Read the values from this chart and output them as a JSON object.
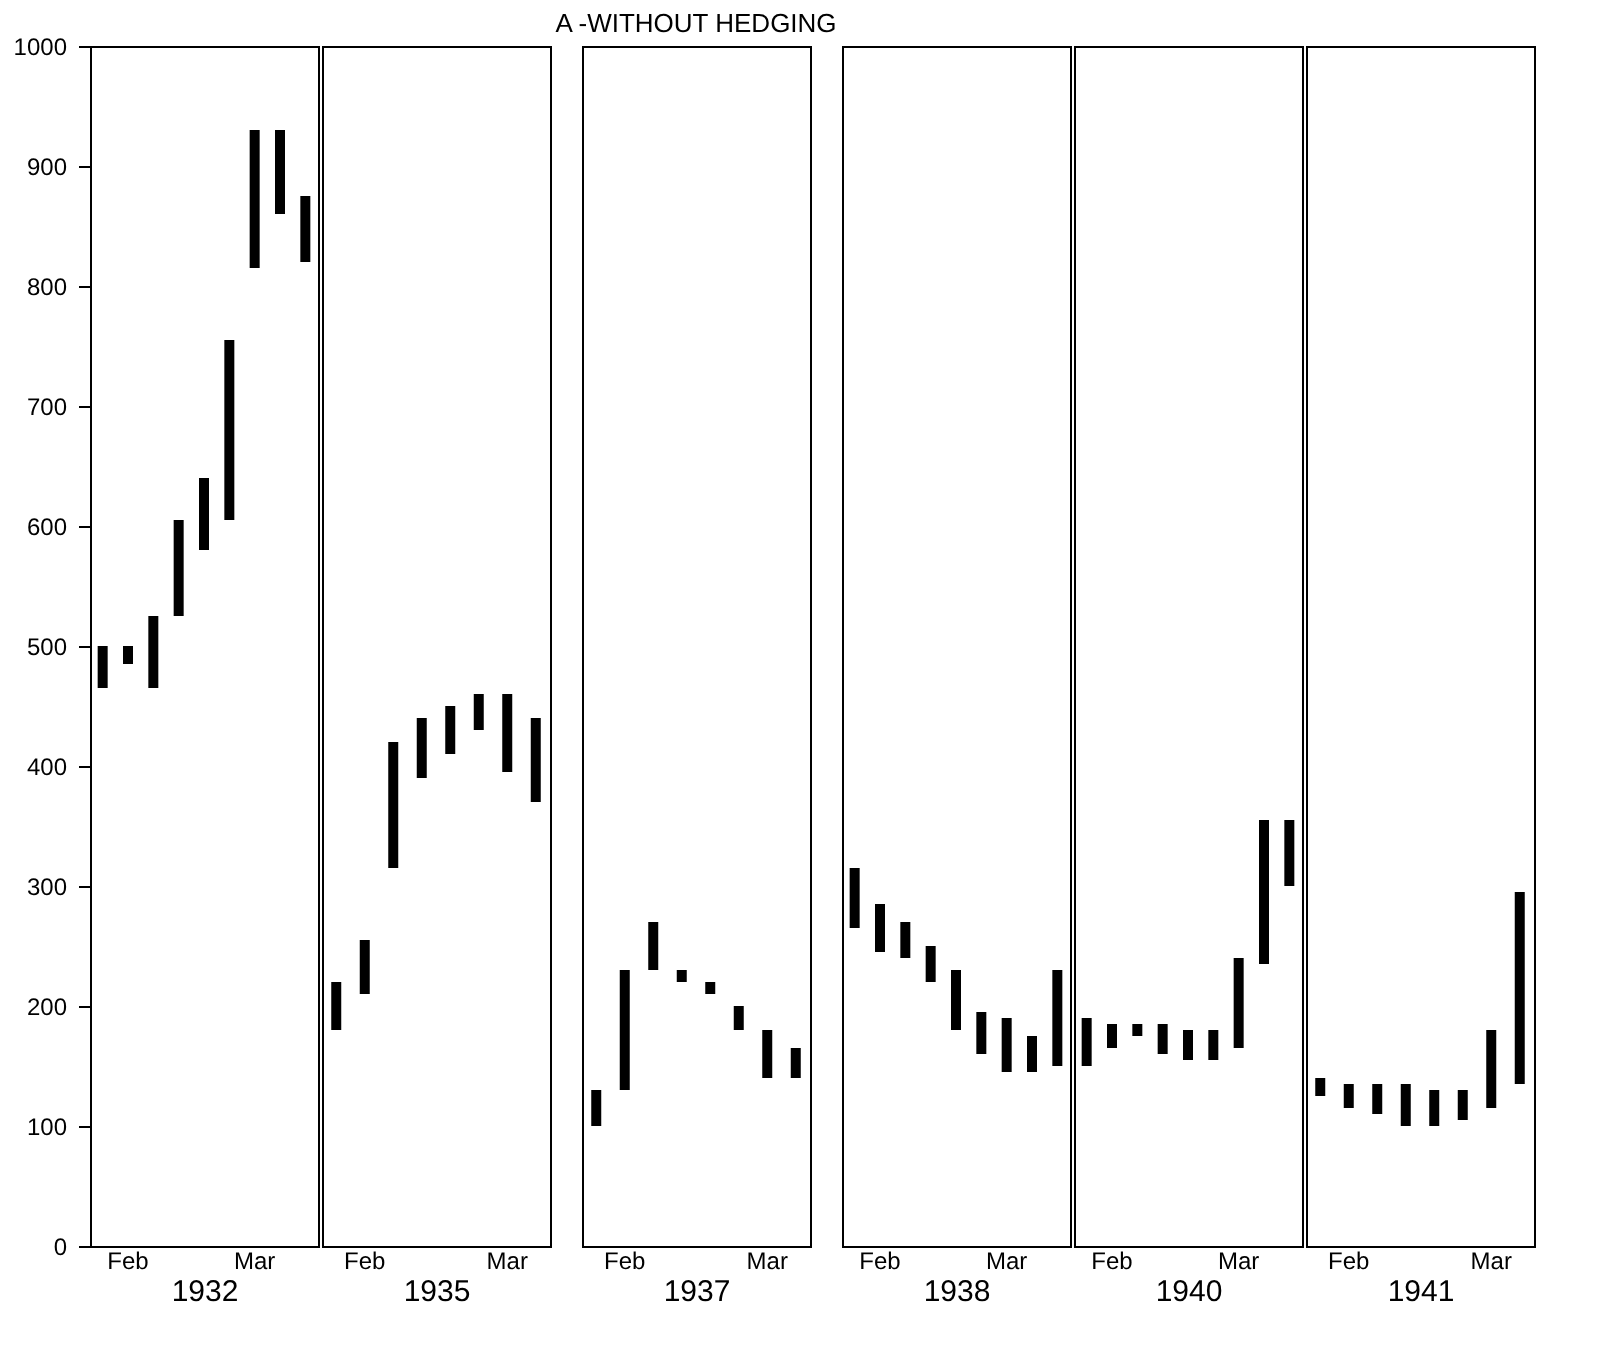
{
  "chart_data": [
    {
      "type": "bar",
      "xlabel": "1932",
      "categories": [
        null,
        "Feb",
        null,
        null,
        null,
        null,
        "Mar",
        null,
        null
      ],
      "base": [
        465,
        485,
        465,
        525,
        580,
        605,
        815,
        860,
        820
      ],
      "values": [
        35,
        15,
        60,
        80,
        60,
        150,
        115,
        70,
        55
      ],
      "color": "#000000",
      "ylim": [
        0,
        1000
      ],
      "yticks": [
        0,
        100,
        200,
        300,
        400,
        500,
        600,
        700,
        800,
        900,
        1000
      ]
    },
    {
      "type": "bar",
      "xlabel": "1935",
      "categories": [
        null,
        "Feb",
        null,
        null,
        null,
        null,
        "Mar",
        null
      ],
      "base": [
        180,
        210,
        315,
        390,
        410,
        430,
        395,
        370
      ],
      "values": [
        40,
        45,
        105,
        50,
        40,
        30,
        65,
        70
      ],
      "color": "#000000",
      "ylim": [
        0,
        1000
      ],
      "yticks": [
        0,
        100,
        200,
        300,
        400,
        500,
        600,
        700,
        800,
        900,
        1000
      ],
      "tick_labels": "x"
    },
    {
      "type": "bar",
      "title": "A -WITHOUT HEDGING",
      "xlabel": "1937",
      "categories": [
        null,
        "Feb",
        null,
        null,
        null,
        null,
        "Mar",
        null
      ],
      "base": [
        100,
        130,
        230,
        220,
        210,
        180,
        140,
        140
      ],
      "values": [
        30,
        100,
        40,
        10,
        10,
        20,
        40,
        25
      ],
      "color": "#000000",
      "ylim": [
        0,
        1000
      ],
      "yticks": [
        0,
        100,
        200,
        300,
        400,
        500,
        600,
        700,
        800,
        900,
        1000
      ],
      "tick_labels": "x"
    },
    {
      "type": "bar",
      "xlabel": "1938",
      "categories": [
        null,
        "Feb",
        null,
        null,
        null,
        null,
        "Mar",
        null,
        null
      ],
      "base": [
        265,
        245,
        240,
        220,
        180,
        160,
        145,
        145,
        150
      ],
      "values": [
        50,
        40,
        30,
        30,
        50,
        35,
        45,
        30,
        80
      ],
      "color": "#000000",
      "ylim": [
        0,
        1000
      ],
      "yticks": [
        0,
        100,
        200,
        300,
        400,
        500,
        600,
        700,
        800,
        900,
        1000
      ],
      "tick_labels": "x"
    },
    {
      "type": "bar",
      "xlabel": "1940",
      "categories": [
        null,
        "Feb",
        null,
        null,
        null,
        null,
        "Mar",
        null,
        null
      ],
      "base": [
        150,
        165,
        175,
        160,
        155,
        155,
        165,
        235,
        300
      ],
      "values": [
        40,
        20,
        10,
        25,
        25,
        25,
        75,
        120,
        55
      ],
      "color": "#000000",
      "ylim": [
        0,
        1000
      ],
      "yticks": [
        0,
        100,
        200,
        300,
        400,
        500,
        600,
        700,
        800,
        900,
        1000
      ],
      "tick_labels": "x"
    },
    {
      "type": "bar",
      "xlabel": "1941",
      "categories": [
        null,
        "Feb",
        null,
        null,
        null,
        null,
        "Mar",
        null
      ],
      "base": [
        125,
        115,
        110,
        100,
        100,
        105,
        115,
        135
      ],
      "values": [
        15,
        20,
        25,
        35,
        30,
        25,
        65,
        160
      ],
      "color": "#000000",
      "ylim": [
        0,
        1000
      ],
      "yticks": [
        0,
        100,
        200,
        300,
        400,
        500,
        600,
        700,
        800,
        900,
        1000
      ],
      "tick_labels": "x"
    }
  ]
}
